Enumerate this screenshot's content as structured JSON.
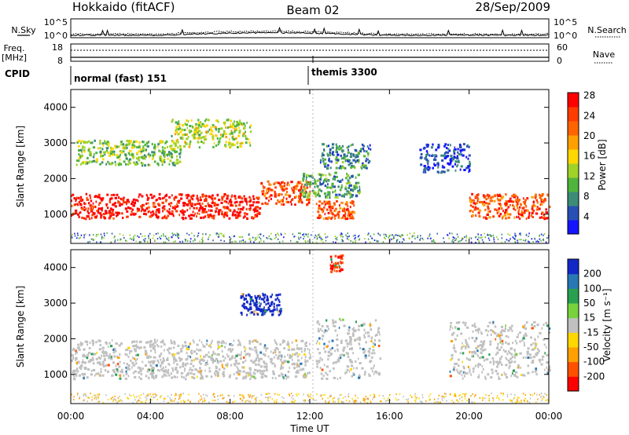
{
  "header": {
    "station": "Hokkaido (fitACF)",
    "beam": "Beam 02",
    "date": "28/Sep/2009"
  },
  "noise_panel": {
    "left_label": "N.Sky",
    "left_ticks": [
      "10^5",
      "10^0"
    ],
    "right_label": "N.Search",
    "right_ticks": [
      "10^5",
      "10^0"
    ]
  },
  "freq_panel": {
    "left_label_line1": "Freq.",
    "left_label_line2": "[MHz]",
    "left_ticks": [
      "18",
      "8"
    ],
    "right_label": "Nave",
    "right_ticks": [
      "60",
      "0"
    ]
  },
  "cpid_panel": {
    "label": "CPID",
    "modes": [
      {
        "name": "normal (fast) 151",
        "start_hour": 0
      },
      {
        "name": "themis 3300",
        "start_hour": 12
      }
    ]
  },
  "time_axis": {
    "title": "Time UT",
    "ticks": [
      "00:00",
      "04:00",
      "08:00",
      "12:00",
      "16:00",
      "20:00",
      "00:00"
    ],
    "range_hours": [
      0,
      24
    ]
  },
  "range_axis": {
    "title": "Slant Range [km]",
    "ticks": [
      "1000",
      "2000",
      "3000",
      "4000"
    ],
    "range_km": [
      180,
      4500
    ]
  },
  "colorbars": {
    "power": {
      "title": "Power [dB]",
      "ticks": [
        "4",
        "8",
        "12",
        "16",
        "20",
        "24",
        "28"
      ],
      "colors": [
        "#1414ff",
        "#2850b4",
        "#3c8c78",
        "#50b43c",
        "#a0d228",
        "#ffd700",
        "#ffa000",
        "#ff6400",
        "#ff3c00",
        "#ff0000"
      ]
    },
    "velocity": {
      "title": "Velocity [m s⁻¹]",
      "ticks": [
        "200",
        "100",
        "50",
        "15",
        "-15",
        "-50",
        "-100",
        "-200"
      ],
      "colors": [
        "#1428c8",
        "#2878b4",
        "#28a050",
        "#78d23c",
        "#c0c0c0",
        "#ffd700",
        "#ffa000",
        "#ff5000",
        "#ff0000"
      ]
    }
  },
  "chart_data": {
    "type": "heatmap",
    "title": "Hokkaido (fitACF) Beam 02 28/Sep/2009",
    "xlabel": "Time UT",
    "ylabel": "Slant Range [km]",
    "xlim": [
      0,
      24
    ],
    "ylim": [
      180,
      4500
    ],
    "power_regions": [
      {
        "t": [
          0.0,
          9.5
        ],
        "r": [
          900,
          1600
        ],
        "level": 28
      },
      {
        "t": [
          9.5,
          12.0
        ],
        "r": [
          1300,
          1950
        ],
        "level": 24
      },
      {
        "t": [
          12.3,
          14.2
        ],
        "r": [
          900,
          1400
        ],
        "level": 24
      },
      {
        "t": [
          20.0,
          24.0
        ],
        "r": [
          900,
          1600
        ],
        "level": 24
      },
      {
        "t": [
          0.2,
          5.5
        ],
        "r": [
          2400,
          3100
        ],
        "level": 12
      },
      {
        "t": [
          5.0,
          9.0
        ],
        "r": [
          2900,
          3700
        ],
        "level": 14
      },
      {
        "t": [
          12.5,
          15.0
        ],
        "r": [
          2300,
          3000
        ],
        "level": 8
      },
      {
        "t": [
          17.5,
          20.0
        ],
        "r": [
          2200,
          3000
        ],
        "level": 4
      },
      {
        "t": [
          11.5,
          14.5
        ],
        "r": [
          1500,
          2200
        ],
        "level": 10
      }
    ],
    "velocity_regions": [
      {
        "t": [
          0.0,
          12.0
        ],
        "r": [
          900,
          2000
        ],
        "v": 0
      },
      {
        "t": [
          12.3,
          15.5
        ],
        "r": [
          900,
          2600
        ],
        "v": 0
      },
      {
        "t": [
          19.0,
          24.0
        ],
        "r": [
          900,
          2500
        ],
        "v": 0
      },
      {
        "t": [
          8.5,
          10.5
        ],
        "r": [
          2700,
          3300
        ],
        "v": 200
      },
      {
        "t": [
          13.0,
          13.6
        ],
        "r": [
          3900,
          4400
        ],
        "v": -200
      }
    ],
    "frequency_mhz": 10,
    "grid": false,
    "legend": "right"
  }
}
